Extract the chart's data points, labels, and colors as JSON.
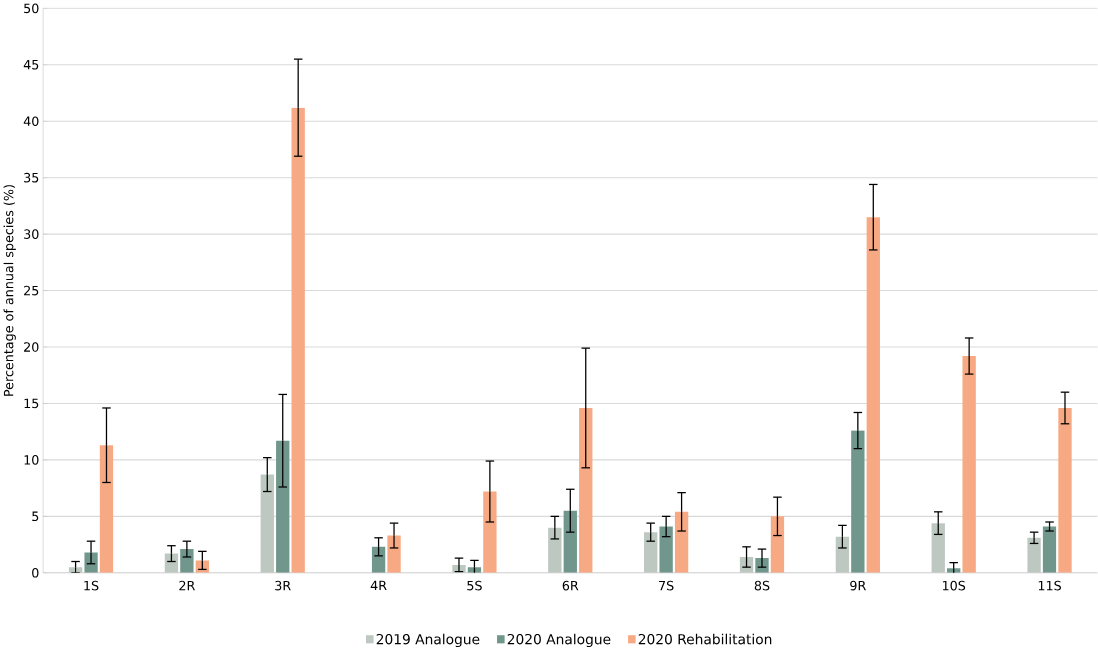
{
  "chart_data": {
    "type": "bar",
    "ylabel": "Percentage of annual species (%)",
    "categories": [
      "1S",
      "2R",
      "3R",
      "4R",
      "5S",
      "6R",
      "7S",
      "8S",
      "9R",
      "10S",
      "11S"
    ],
    "series": [
      {
        "name": "2019 Analogue",
        "color": "#bcc8c0",
        "values": [
          0.5,
          1.7,
          8.7,
          null,
          0.7,
          4.0,
          3.6,
          1.4,
          3.2,
          4.4,
          3.1
        ],
        "errors": [
          0.5,
          0.7,
          1.5,
          null,
          0.6,
          1.0,
          0.8,
          0.9,
          1.0,
          1.0,
          0.5
        ]
      },
      {
        "name": "2020 Analogue",
        "color": "#71968b",
        "values": [
          1.8,
          2.1,
          11.7,
          2.3,
          0.5,
          5.5,
          4.1,
          1.3,
          12.6,
          0.4,
          4.1
        ],
        "errors": [
          1.0,
          0.7,
          4.1,
          0.8,
          0.6,
          1.9,
          0.9,
          0.8,
          1.6,
          0.5,
          0.4
        ]
      },
      {
        "name": "2020 Rehabilitation",
        "color": "#f6a982",
        "values": [
          11.3,
          1.1,
          41.2,
          3.3,
          7.2,
          14.6,
          5.4,
          5.0,
          31.5,
          19.2,
          14.6
        ],
        "errors": [
          3.3,
          0.8,
          4.3,
          1.1,
          2.7,
          5.3,
          1.7,
          1.7,
          2.9,
          1.6,
          1.4
        ]
      }
    ],
    "ylim": [
      0,
      50
    ],
    "yticks": [
      0,
      5,
      10,
      15,
      20,
      25,
      30,
      35,
      40,
      45,
      50
    ],
    "grid": "y",
    "legend": "bottom"
  }
}
